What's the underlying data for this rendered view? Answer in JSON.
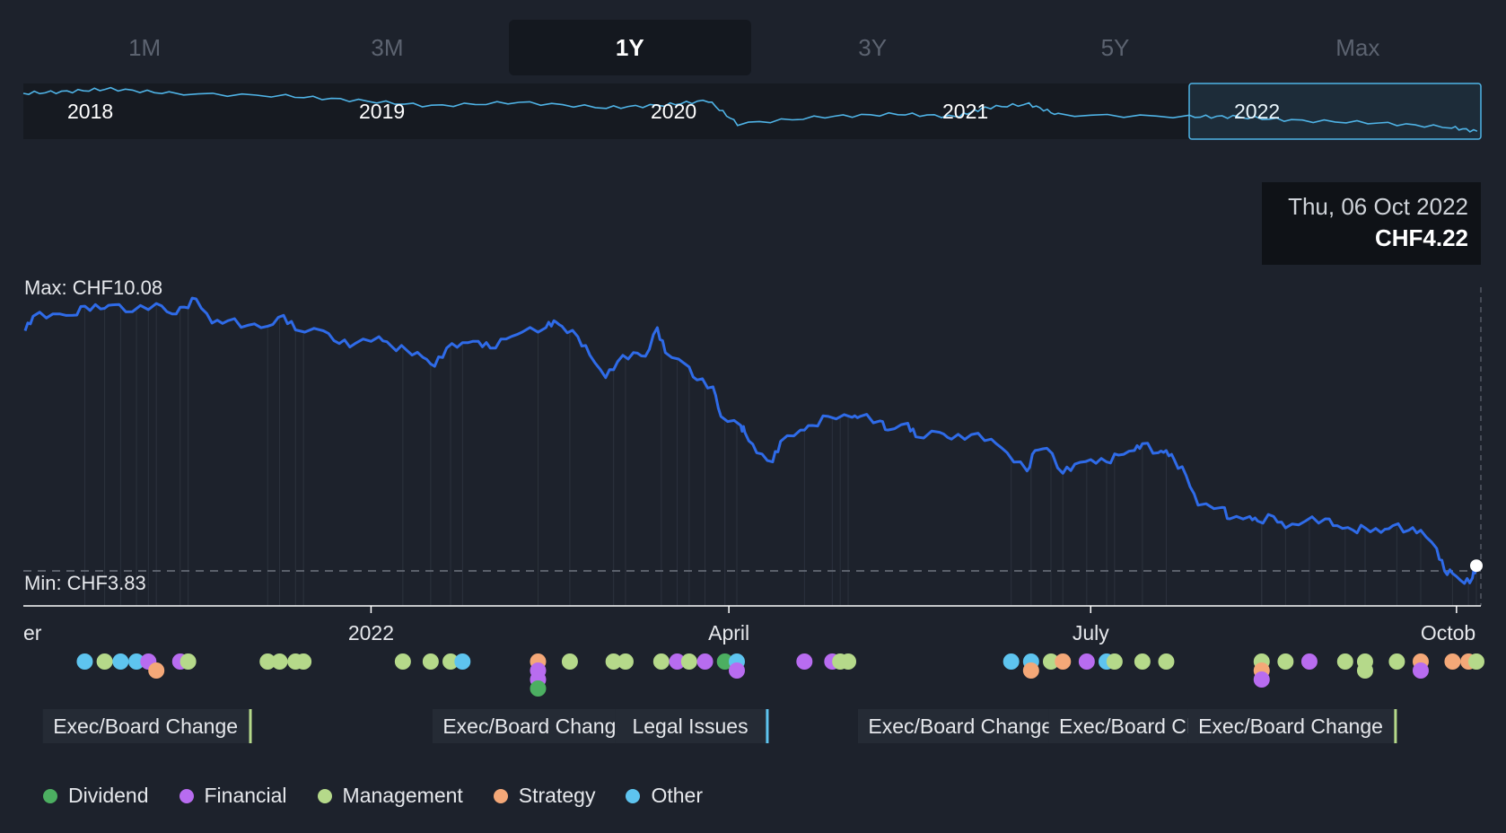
{
  "range_tabs": [
    {
      "label": "1M",
      "active": false
    },
    {
      "label": "3M",
      "active": false
    },
    {
      "label": "1Y",
      "active": true
    },
    {
      "label": "3Y",
      "active": false
    },
    {
      "label": "5Y",
      "active": false
    },
    {
      "label": "Max",
      "active": false
    }
  ],
  "navigator": {
    "year_labels": [
      "2018",
      "2019",
      "2020",
      "2021",
      "2022"
    ],
    "selected_range": "1Y"
  },
  "tooltip": {
    "date": "Thu, 06 Oct 2022",
    "price": "CHF4.22"
  },
  "chart_data": {
    "type": "line",
    "currency": "CHF",
    "x_start": "2021-10-06",
    "x_end": "2022-10-06",
    "x_tick_labels": [
      "er",
      "2022",
      "April",
      "July",
      "Octob"
    ],
    "max_label": "Max: CHF10.08",
    "min_label": "Min: CHF3.83",
    "ylim": [
      3.83,
      10.08
    ],
    "grid": false,
    "legend_position": "bottom-left",
    "series": [
      {
        "values": [
          [
            "2021-10-06",
            9.38
          ],
          [
            "2021-10-08",
            9.7
          ],
          [
            "2021-10-13",
            9.75
          ],
          [
            "2021-10-18",
            9.72
          ],
          [
            "2021-10-21",
            9.92
          ],
          [
            "2021-10-25",
            9.86
          ],
          [
            "2021-10-28",
            9.95
          ],
          [
            "2021-11-02",
            9.8
          ],
          [
            "2021-11-08",
            9.98
          ],
          [
            "2021-11-12",
            9.75
          ],
          [
            "2021-11-15",
            9.9
          ],
          [
            "2021-11-18",
            10.08
          ],
          [
            "2021-11-22",
            9.55
          ],
          [
            "2021-11-26",
            9.6
          ],
          [
            "2021-12-01",
            9.5
          ],
          [
            "2021-12-06",
            9.48
          ],
          [
            "2021-12-10",
            9.72
          ],
          [
            "2021-12-13",
            9.4
          ],
          [
            "2021-12-20",
            9.38
          ],
          [
            "2021-12-24",
            9.1
          ],
          [
            "2021-12-28",
            9.1
          ],
          [
            "2022-01-03",
            9.25
          ],
          [
            "2022-01-06",
            9.05
          ],
          [
            "2022-01-10",
            8.95
          ],
          [
            "2022-01-14",
            8.8
          ],
          [
            "2022-01-17",
            8.6
          ],
          [
            "2022-01-20",
            9.0
          ],
          [
            "2022-01-24",
            9.12
          ],
          [
            "2022-01-28",
            9.15
          ],
          [
            "2022-01-31",
            9.0
          ],
          [
            "2022-02-04",
            9.2
          ],
          [
            "2022-02-08",
            9.35
          ],
          [
            "2022-02-14",
            9.45
          ],
          [
            "2022-02-16",
            9.6
          ],
          [
            "2022-02-18",
            9.48
          ],
          [
            "2022-02-22",
            9.25
          ],
          [
            "2022-02-25",
            8.85
          ],
          [
            "2022-03-01",
            8.35
          ],
          [
            "2022-03-04",
            8.7
          ],
          [
            "2022-03-08",
            8.9
          ],
          [
            "2022-03-11",
            8.82
          ],
          [
            "2022-03-14",
            9.45
          ],
          [
            "2022-03-16",
            8.9
          ],
          [
            "2022-03-21",
            8.65
          ],
          [
            "2022-03-24",
            8.3
          ],
          [
            "2022-03-28",
            8.15
          ],
          [
            "2022-03-30",
            7.5
          ],
          [
            "2022-04-04",
            7.3
          ],
          [
            "2022-04-05",
            7.15
          ],
          [
            "2022-04-08",
            6.7
          ],
          [
            "2022-04-12",
            6.5
          ],
          [
            "2022-04-14",
            6.95
          ],
          [
            "2022-04-19",
            7.2
          ],
          [
            "2022-04-22",
            7.3
          ],
          [
            "2022-04-26",
            7.5
          ],
          [
            "2022-05-02",
            7.48
          ],
          [
            "2022-05-04",
            7.5
          ],
          [
            "2022-05-09",
            7.4
          ],
          [
            "2022-05-11",
            7.2
          ],
          [
            "2022-05-16",
            7.35
          ],
          [
            "2022-05-18",
            7.05
          ],
          [
            "2022-05-24",
            7.15
          ],
          [
            "2022-05-27",
            7.0
          ],
          [
            "2022-06-01",
            7.1
          ],
          [
            "2022-06-06",
            7.0
          ],
          [
            "2022-06-10",
            6.7
          ],
          [
            "2022-06-15",
            6.3
          ],
          [
            "2022-06-17",
            6.75
          ],
          [
            "2022-06-20",
            6.8
          ],
          [
            "2022-06-24",
            6.25
          ],
          [
            "2022-06-27",
            6.45
          ],
          [
            "2022-07-01",
            6.55
          ],
          [
            "2022-07-05",
            6.5
          ],
          [
            "2022-07-08",
            6.65
          ],
          [
            "2022-07-12",
            6.75
          ],
          [
            "2022-07-14",
            6.9
          ],
          [
            "2022-07-18",
            6.7
          ],
          [
            "2022-07-20",
            6.75
          ],
          [
            "2022-07-22",
            6.55
          ],
          [
            "2022-07-25",
            6.2
          ],
          [
            "2022-07-28",
            5.55
          ],
          [
            "2022-08-03",
            5.5
          ],
          [
            "2022-08-05",
            5.25
          ],
          [
            "2022-08-10",
            5.3
          ],
          [
            "2022-08-12",
            5.2
          ],
          [
            "2022-08-16",
            5.3
          ],
          [
            "2022-08-19",
            5.05
          ],
          [
            "2022-08-24",
            5.2
          ],
          [
            "2022-08-29",
            5.25
          ],
          [
            "2022-09-01",
            5.1
          ],
          [
            "2022-09-05",
            5.0
          ],
          [
            "2022-09-08",
            5.05
          ],
          [
            "2022-09-12",
            4.95
          ],
          [
            "2022-09-15",
            5.1
          ],
          [
            "2022-09-19",
            5.0
          ],
          [
            "2022-09-22",
            5.0
          ],
          [
            "2022-09-26",
            4.6
          ],
          [
            "2022-09-28",
            4.1
          ],
          [
            "2022-09-30",
            4.05
          ],
          [
            "2022-10-03",
            3.83
          ],
          [
            "2022-10-05",
            3.95
          ],
          [
            "2022-10-06",
            4.22
          ]
        ]
      }
    ],
    "event_categories": [
      {
        "key": "dividend",
        "label": "Dividend",
        "color": "#4caf61"
      },
      {
        "key": "financial",
        "label": "Financial",
        "color": "#b86cf0"
      },
      {
        "key": "management",
        "label": "Management",
        "color": "#b5d98a"
      },
      {
        "key": "strategy",
        "label": "Strategy",
        "color": "#f4a878"
      },
      {
        "key": "other",
        "label": "Other",
        "color": "#5ec4ef"
      }
    ],
    "event_annotations": [
      {
        "label": "Exec/Board Change",
        "date": "2021-12-02",
        "category": "management"
      },
      {
        "label": "Exec/Board Change",
        "date": "2022-03-10",
        "category": "management"
      },
      {
        "label": "Legal Issues",
        "date": "2022-04-11",
        "category": "other"
      },
      {
        "label": "Exec/Board Change",
        "date": "2022-06-25",
        "category": "management"
      },
      {
        "label": "Exec/Board Change",
        "date": "2022-08-12",
        "category": "management"
      },
      {
        "label": "Exec/Board Change",
        "date": "2022-09-16",
        "category": "management"
      }
    ],
    "events": [
      {
        "date": "2021-10-21",
        "category": "other"
      },
      {
        "date": "2021-10-26",
        "category": "management"
      },
      {
        "date": "2021-10-30",
        "category": "other"
      },
      {
        "date": "2021-11-03",
        "category": "other"
      },
      {
        "date": "2021-11-06",
        "category": "financial"
      },
      {
        "date": "2021-11-08",
        "category": "strategy"
      },
      {
        "date": "2021-11-14",
        "category": "financial"
      },
      {
        "date": "2021-11-16",
        "category": "management"
      },
      {
        "date": "2021-12-06",
        "category": "management"
      },
      {
        "date": "2021-12-09",
        "category": "management"
      },
      {
        "date": "2021-12-13",
        "category": "management"
      },
      {
        "date": "2021-12-15",
        "category": "management"
      },
      {
        "date": "2022-01-09",
        "category": "management"
      },
      {
        "date": "2022-01-16",
        "category": "management"
      },
      {
        "date": "2022-01-21",
        "category": "management"
      },
      {
        "date": "2022-01-24",
        "category": "other"
      },
      {
        "date": "2022-02-12",
        "category": "strategy"
      },
      {
        "date": "2022-02-12",
        "category": "financial"
      },
      {
        "date": "2022-02-12",
        "category": "financial"
      },
      {
        "date": "2022-02-12",
        "category": "dividend"
      },
      {
        "date": "2022-02-20",
        "category": "management"
      },
      {
        "date": "2022-03-03",
        "category": "management"
      },
      {
        "date": "2022-03-06",
        "category": "management"
      },
      {
        "date": "2022-03-15",
        "category": "management"
      },
      {
        "date": "2022-03-19",
        "category": "financial"
      },
      {
        "date": "2022-03-22",
        "category": "management"
      },
      {
        "date": "2022-03-26",
        "category": "financial"
      },
      {
        "date": "2022-03-31",
        "category": "dividend"
      },
      {
        "date": "2022-04-03",
        "category": "other"
      },
      {
        "date": "2022-04-03",
        "category": "financial"
      },
      {
        "date": "2022-04-20",
        "category": "financial"
      },
      {
        "date": "2022-04-27",
        "category": "financial"
      },
      {
        "date": "2022-04-29",
        "category": "management"
      },
      {
        "date": "2022-05-01",
        "category": "management"
      },
      {
        "date": "2022-06-11",
        "category": "other"
      },
      {
        "date": "2022-06-16",
        "category": "other"
      },
      {
        "date": "2022-06-16",
        "category": "strategy"
      },
      {
        "date": "2022-06-21",
        "category": "management"
      },
      {
        "date": "2022-06-24",
        "category": "strategy"
      },
      {
        "date": "2022-06-30",
        "category": "financial"
      },
      {
        "date": "2022-07-05",
        "category": "other"
      },
      {
        "date": "2022-07-07",
        "category": "management"
      },
      {
        "date": "2022-07-14",
        "category": "management"
      },
      {
        "date": "2022-07-20",
        "category": "management"
      },
      {
        "date": "2022-08-13",
        "category": "management"
      },
      {
        "date": "2022-08-13",
        "category": "strategy"
      },
      {
        "date": "2022-08-13",
        "category": "financial"
      },
      {
        "date": "2022-08-19",
        "category": "management"
      },
      {
        "date": "2022-08-25",
        "category": "financial"
      },
      {
        "date": "2022-09-03",
        "category": "management"
      },
      {
        "date": "2022-09-08",
        "category": "management"
      },
      {
        "date": "2022-09-08",
        "category": "management"
      },
      {
        "date": "2022-09-16",
        "category": "management"
      },
      {
        "date": "2022-09-22",
        "category": "strategy"
      },
      {
        "date": "2022-09-22",
        "category": "financial"
      },
      {
        "date": "2022-09-30",
        "category": "strategy"
      },
      {
        "date": "2022-10-04",
        "category": "strategy"
      },
      {
        "date": "2022-10-06",
        "category": "management"
      }
    ]
  }
}
